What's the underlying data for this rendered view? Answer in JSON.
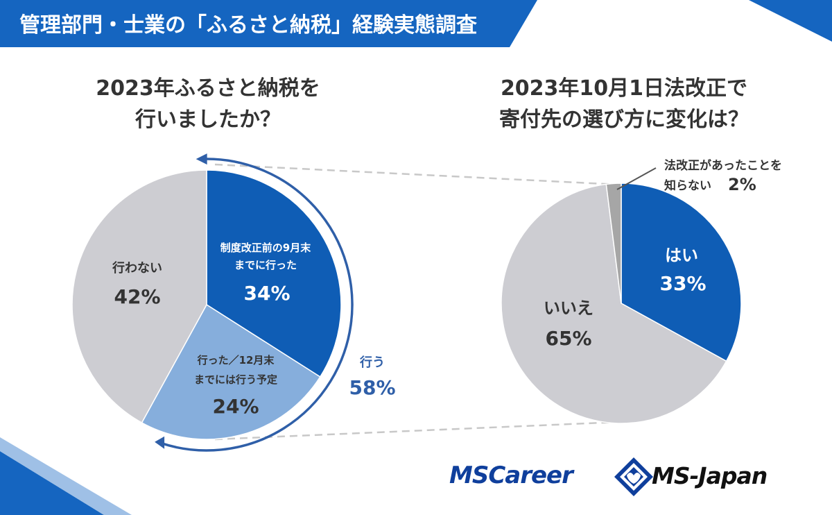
{
  "header": {
    "title": "管理部門・士業の「ふるさと納税」経験実態調査"
  },
  "colors": {
    "dark_blue": "#0f5db5",
    "light_blue": "#86aedc",
    "gray": "#cdcdd2",
    "dark_gray": "#a6a6a6",
    "header_blue": "#1565c0",
    "label_blue": "#2f5fa8"
  },
  "chart_data": [
    {
      "type": "pie",
      "title_lines": [
        "2023年ふるさと納税を",
        "行いましたか？"
      ],
      "slices": [
        {
          "name_lines": [
            "制度改正前の9月末",
            "までに行った"
          ],
          "value": 34,
          "pct_label": "34%",
          "color": "#0f5db5"
        },
        {
          "name_lines": [
            "行った／12月末",
            "までには行う予定"
          ],
          "value": 24,
          "pct_label": "24%",
          "color": "#86aedc"
        },
        {
          "name_lines": [
            "行わない"
          ],
          "value": 42,
          "pct_label": "42%",
          "color": "#cdcdd2"
        }
      ],
      "bracket": {
        "label": "行う",
        "value": 58,
        "pct_label": "58%"
      }
    },
    {
      "type": "pie",
      "title_lines": [
        "2023年10月1日法改正で",
        "寄付先の選び方に変化は？"
      ],
      "slices": [
        {
          "name_lines": [
            "はい"
          ],
          "value": 33,
          "pct_label": "33%",
          "color": "#0f5db5"
        },
        {
          "name_lines": [
            "いいえ"
          ],
          "value": 65,
          "pct_label": "65%",
          "color": "#cdcdd2"
        },
        {
          "name_lines": [
            "法改正があったことを",
            "知らない"
          ],
          "value": 2,
          "pct_label": "2%",
          "color": "#a6a6a6"
        }
      ]
    }
  ],
  "logos": {
    "left": "MSCareer",
    "right": "MS-Japan"
  }
}
